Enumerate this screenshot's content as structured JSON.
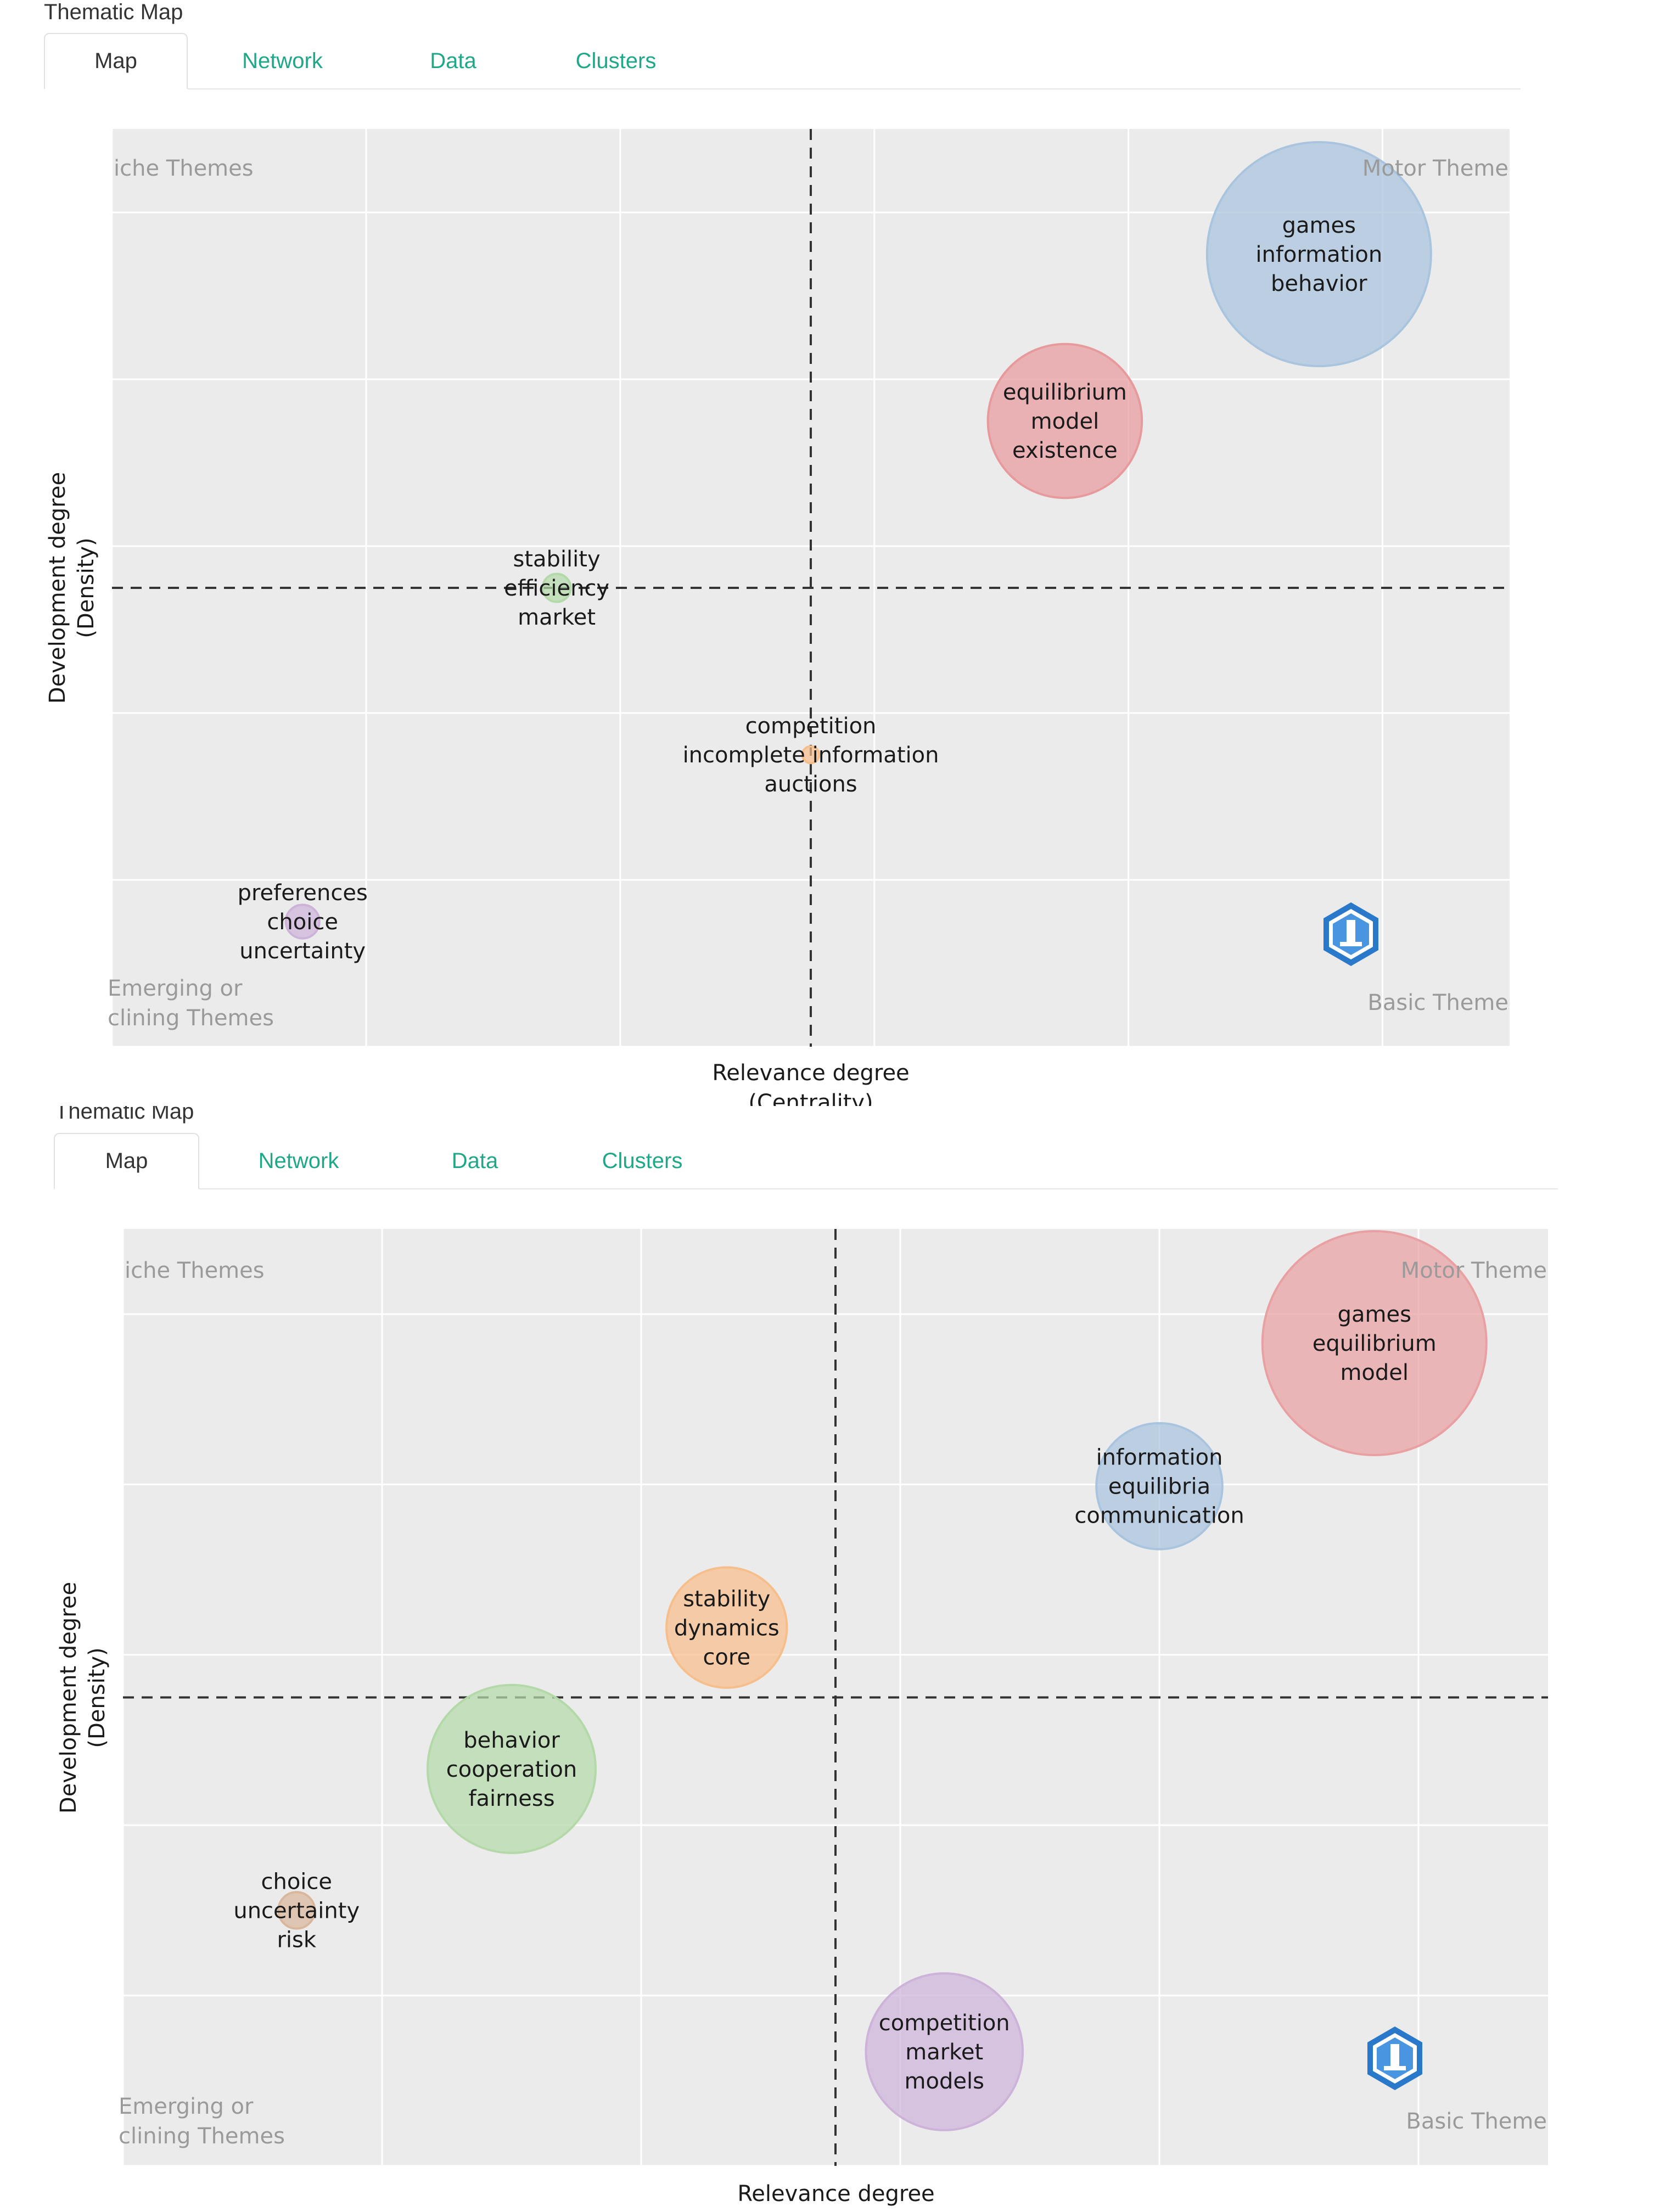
{
  "panels": [
    {
      "title": "Thematic Map",
      "tabs": [
        {
          "label": "Map"
        },
        {
          "label": "Network"
        },
        {
          "label": "Data"
        },
        {
          "label": "Clusters"
        }
      ],
      "quadrants": {
        "top_left": "iche Themes",
        "top_right": "Motor Theme",
        "bottom_left": [
          "Emerging or",
          "clining Themes"
        ],
        "bottom_right": "Basic Theme"
      },
      "xlabel": [
        "Relevance degree",
        "(Centrality)"
      ],
      "ylabel": [
        "Development degree",
        "(Density)"
      ]
    },
    {
      "title": "Thematic Map",
      "tabs": [
        {
          "label": "Map"
        },
        {
          "label": "Network"
        },
        {
          "label": "Data"
        },
        {
          "label": "Clusters"
        }
      ],
      "quadrants": {
        "top_left": "iche Themes",
        "top_right": "Motor Theme",
        "bottom_left": [
          "Emerging or",
          "clining Themes"
        ],
        "bottom_right": "Basic Theme"
      },
      "xlabel": [
        "Relevance degree"
      ],
      "ylabel": [
        "Development degree",
        "(Density)"
      ]
    }
  ],
  "chart_data": [
    {
      "type": "scatter",
      "title": "",
      "xlabel": "Relevance degree (Centrality)",
      "ylabel": "Development degree (Density)",
      "xlim": [
        0,
        5.5
      ],
      "ylim": [
        0,
        5.5
      ],
      "xmid": 2.75,
      "ymid": 2.75,
      "grid": true,
      "points": [
        {
          "label": [
            "games",
            "information",
            "behavior"
          ],
          "x": 4.75,
          "y": 4.75,
          "size": 80,
          "color": "#a9c4de"
        },
        {
          "label": [
            "equilibrium",
            "model",
            "existence"
          ],
          "x": 3.75,
          "y": 3.75,
          "size": 55,
          "color": "#e79a9c"
        },
        {
          "label": [
            "stability",
            "efficiency",
            "market"
          ],
          "x": 1.75,
          "y": 2.75,
          "size": 10,
          "color": "#b4d9a8"
        },
        {
          "label": [
            "competition",
            "incomplete information",
            "auctions"
          ],
          "x": 2.75,
          "y": 1.75,
          "size": 6,
          "color": "#f6be8b"
        },
        {
          "label": [
            "preferences",
            "choice",
            "uncertainty"
          ],
          "x": 0.75,
          "y": 0.75,
          "size": 12,
          "color": "#cdb3d9"
        }
      ]
    },
    {
      "type": "scatter",
      "title": "",
      "xlabel": "Relevance degree",
      "ylabel": "Development degree (Density)",
      "xlim": [
        0,
        5.5
      ],
      "ylim": [
        0,
        5.5
      ],
      "xmid": 2.75,
      "ymid": 2.75,
      "grid": true,
      "points": [
        {
          "label": [
            "games",
            "equilibrium",
            "model"
          ],
          "x": 4.83,
          "y": 4.83,
          "size": 80,
          "color": "#e8a0a2"
        },
        {
          "label": [
            "information",
            "equilibria",
            "communication"
          ],
          "x": 4.0,
          "y": 3.99,
          "size": 45,
          "color": "#a9c4de"
        },
        {
          "label": [
            "stability",
            "dynamics",
            "core"
          ],
          "x": 2.33,
          "y": 3.16,
          "size": 43,
          "color": "#f6be8b"
        },
        {
          "label": [
            "behavior",
            "cooperation",
            "fairness"
          ],
          "x": 1.5,
          "y": 2.33,
          "size": 60,
          "color": "#b4d9a8"
        },
        {
          "label": [
            "choice",
            "uncertainty",
            "risk"
          ],
          "x": 0.67,
          "y": 1.5,
          "size": 13,
          "color": "#d9b79c"
        },
        {
          "label": [
            "competition",
            "market",
            "models"
          ],
          "x": 3.17,
          "y": 0.67,
          "size": 56,
          "color": "#cdb3d9"
        }
      ]
    }
  ]
}
